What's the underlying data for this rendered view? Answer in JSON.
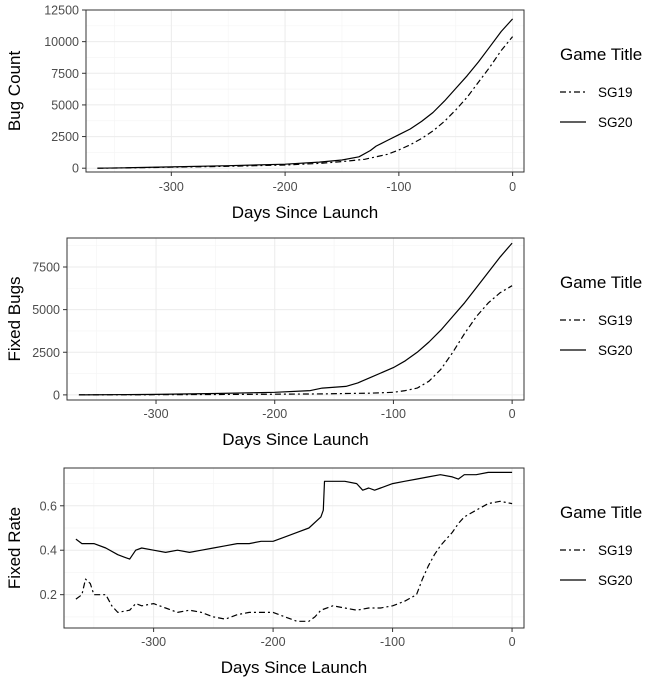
{
  "legend": {
    "title": "Game Title",
    "position": "right",
    "entries": [
      {
        "name": "SG19",
        "dash": "6,3,2,3"
      },
      {
        "name": "SG20",
        "dash": ""
      }
    ]
  },
  "colors": {
    "grid_major": "#ebebeb",
    "grid_minor": "#f5f5f5",
    "panel_border": "#333333",
    "line": "#000000"
  },
  "chart_data": [
    {
      "type": "line",
      "xlabel": "Days Since Launch",
      "ylabel": "Bug Count",
      "xlim": [
        -375,
        10
      ],
      "ylim": [
        -300,
        12500
      ],
      "xticks": [
        -300,
        -200,
        -100,
        0
      ],
      "yticks": [
        0,
        2500,
        5000,
        7500,
        10000,
        12500
      ],
      "grid": true,
      "series": [
        {
          "name": "SG19",
          "points": [
            [
              -365,
              0
            ],
            [
              -340,
              20
            ],
            [
              -300,
              80
            ],
            [
              -250,
              150
            ],
            [
              -200,
              250
            ],
            [
              -170,
              380
            ],
            [
              -150,
              520
            ],
            [
              -130,
              700
            ],
            [
              -120,
              900
            ],
            [
              -110,
              1100
            ],
            [
              -100,
              1450
            ],
            [
              -90,
              1850
            ],
            [
              -80,
              2350
            ],
            [
              -70,
              2950
            ],
            [
              -60,
              3700
            ],
            [
              -50,
              4600
            ],
            [
              -40,
              5600
            ],
            [
              -30,
              6800
            ],
            [
              -20,
              8000
            ],
            [
              -10,
              9300
            ],
            [
              0,
              10400
            ]
          ]
        },
        {
          "name": "SG20",
          "points": [
            [
              -365,
              0
            ],
            [
              -340,
              30
            ],
            [
              -300,
              100
            ],
            [
              -250,
              200
            ],
            [
              -200,
              320
            ],
            [
              -170,
              480
            ],
            [
              -150,
              650
            ],
            [
              -135,
              900
            ],
            [
              -125,
              1400
            ],
            [
              -120,
              1750
            ],
            [
              -110,
              2200
            ],
            [
              -100,
              2650
            ],
            [
              -90,
              3100
            ],
            [
              -80,
              3700
            ],
            [
              -70,
              4400
            ],
            [
              -60,
              5300
            ],
            [
              -50,
              6300
            ],
            [
              -40,
              7300
            ],
            [
              -30,
              8400
            ],
            [
              -20,
              9600
            ],
            [
              -10,
              10800
            ],
            [
              0,
              11800
            ]
          ]
        }
      ]
    },
    {
      "type": "line",
      "xlabel": "Days Since Launch",
      "ylabel": "Fixed Bugs",
      "xlim": [
        -375,
        10
      ],
      "ylim": [
        -300,
        9200
      ],
      "xticks": [
        -300,
        -200,
        -100,
        0
      ],
      "yticks": [
        0,
        2500,
        5000,
        7500
      ],
      "grid": true,
      "series": [
        {
          "name": "SG19",
          "points": [
            [
              -365,
              0
            ],
            [
              -300,
              10
            ],
            [
              -250,
              20
            ],
            [
              -200,
              40
            ],
            [
              -160,
              60
            ],
            [
              -140,
              80
            ],
            [
              -120,
              100
            ],
            [
              -100,
              150
            ],
            [
              -90,
              250
            ],
            [
              -80,
              400
            ],
            [
              -70,
              800
            ],
            [
              -60,
              1500
            ],
            [
              -50,
              2500
            ],
            [
              -40,
              3600
            ],
            [
              -30,
              4600
            ],
            [
              -20,
              5400
            ],
            [
              -10,
              6000
            ],
            [
              0,
              6400
            ]
          ]
        },
        {
          "name": "SG20",
          "points": [
            [
              -365,
              0
            ],
            [
              -300,
              30
            ],
            [
              -250,
              80
            ],
            [
              -200,
              150
            ],
            [
              -170,
              250
            ],
            [
              -160,
              400
            ],
            [
              -140,
              500
            ],
            [
              -130,
              700
            ],
            [
              -120,
              1000
            ],
            [
              -100,
              1600
            ],
            [
              -90,
              2000
            ],
            [
              -80,
              2500
            ],
            [
              -70,
              3100
            ],
            [
              -60,
              3800
            ],
            [
              -50,
              4600
            ],
            [
              -40,
              5400
            ],
            [
              -30,
              6300
            ],
            [
              -20,
              7200
            ],
            [
              -10,
              8100
            ],
            [
              0,
              8900
            ]
          ]
        }
      ]
    },
    {
      "type": "line",
      "xlabel": "Days Since Launch",
      "ylabel": "Fixed Rate",
      "xlim": [
        -375,
        10
      ],
      "ylim": [
        0.05,
        0.77
      ],
      "xticks": [
        -300,
        -200,
        -100,
        0
      ],
      "yticks": [
        0.2,
        0.4,
        0.6
      ],
      "grid": true,
      "series": [
        {
          "name": "SG19",
          "points": [
            [
              -365,
              0.18
            ],
            [
              -360,
              0.2
            ],
            [
              -357,
              0.27
            ],
            [
              -353,
              0.25
            ],
            [
              -350,
              0.2
            ],
            [
              -340,
              0.2
            ],
            [
              -335,
              0.15
            ],
            [
              -330,
              0.12
            ],
            [
              -320,
              0.13
            ],
            [
              -315,
              0.16
            ],
            [
              -310,
              0.15
            ],
            [
              -300,
              0.16
            ],
            [
              -290,
              0.14
            ],
            [
              -280,
              0.12
            ],
            [
              -270,
              0.13
            ],
            [
              -260,
              0.12
            ],
            [
              -250,
              0.1
            ],
            [
              -240,
              0.09
            ],
            [
              -230,
              0.11
            ],
            [
              -220,
              0.12
            ],
            [
              -200,
              0.12
            ],
            [
              -190,
              0.1
            ],
            [
              -180,
              0.08
            ],
            [
              -170,
              0.08
            ],
            [
              -165,
              0.1
            ],
            [
              -160,
              0.13
            ],
            [
              -150,
              0.15
            ],
            [
              -140,
              0.14
            ],
            [
              -130,
              0.13
            ],
            [
              -120,
              0.14
            ],
            [
              -110,
              0.14
            ],
            [
              -100,
              0.15
            ],
            [
              -90,
              0.17
            ],
            [
              -80,
              0.2
            ],
            [
              -75,
              0.27
            ],
            [
              -70,
              0.33
            ],
            [
              -65,
              0.38
            ],
            [
              -60,
              0.42
            ],
            [
              -55,
              0.45
            ],
            [
              -50,
              0.48
            ],
            [
              -45,
              0.52
            ],
            [
              -40,
              0.55
            ],
            [
              -30,
              0.58
            ],
            [
              -20,
              0.61
            ],
            [
              -10,
              0.62
            ],
            [
              0,
              0.61
            ]
          ]
        },
        {
          "name": "SG20",
          "points": [
            [
              -365,
              0.45
            ],
            [
              -360,
              0.43
            ],
            [
              -350,
              0.43
            ],
            [
              -340,
              0.41
            ],
            [
              -330,
              0.38
            ],
            [
              -325,
              0.37
            ],
            [
              -320,
              0.36
            ],
            [
              -315,
              0.4
            ],
            [
              -310,
              0.41
            ],
            [
              -300,
              0.4
            ],
            [
              -290,
              0.39
            ],
            [
              -280,
              0.4
            ],
            [
              -270,
              0.39
            ],
            [
              -260,
              0.4
            ],
            [
              -250,
              0.41
            ],
            [
              -240,
              0.42
            ],
            [
              -230,
              0.43
            ],
            [
              -220,
              0.43
            ],
            [
              -210,
              0.44
            ],
            [
              -200,
              0.44
            ],
            [
              -190,
              0.46
            ],
            [
              -180,
              0.48
            ],
            [
              -170,
              0.5
            ],
            [
              -160,
              0.55
            ],
            [
              -158,
              0.58
            ],
            [
              -157,
              0.71
            ],
            [
              -150,
              0.71
            ],
            [
              -140,
              0.71
            ],
            [
              -130,
              0.7
            ],
            [
              -125,
              0.67
            ],
            [
              -120,
              0.68
            ],
            [
              -115,
              0.67
            ],
            [
              -110,
              0.68
            ],
            [
              -100,
              0.7
            ],
            [
              -90,
              0.71
            ],
            [
              -80,
              0.72
            ],
            [
              -70,
              0.73
            ],
            [
              -60,
              0.74
            ],
            [
              -50,
              0.73
            ],
            [
              -45,
              0.72
            ],
            [
              -40,
              0.74
            ],
            [
              -30,
              0.74
            ],
            [
              -20,
              0.75
            ],
            [
              -10,
              0.75
            ],
            [
              0,
              0.75
            ]
          ]
        }
      ]
    }
  ]
}
